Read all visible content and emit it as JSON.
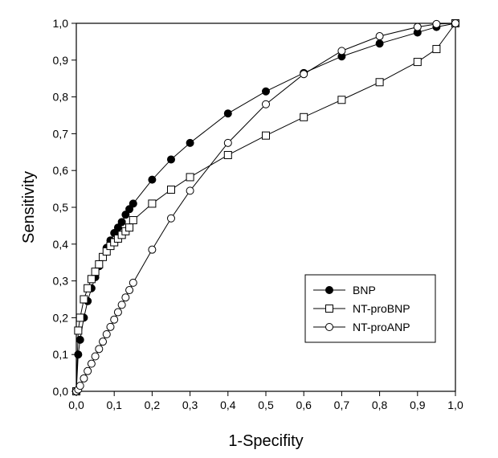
{
  "chart_data": {
    "type": "line",
    "xlabel": "1-Specifity",
    "ylabel": "Sensitivity",
    "xlim": [
      0,
      1
    ],
    "ylim": [
      0,
      1
    ],
    "x_ticks": [
      "0,0",
      "0,1",
      "0,2",
      "0,3",
      "0,4",
      "0,5",
      "0,6",
      "0,7",
      "0,8",
      "0,9",
      "1,0"
    ],
    "y_ticks": [
      "0,0",
      "0,1",
      "0,2",
      "0,3",
      "0,4",
      "0,5",
      "0,6",
      "0,7",
      "0,8",
      "0,9",
      "1,0"
    ],
    "grid": false,
    "legend_position": "bottom-right",
    "series": [
      {
        "name": "BNP",
        "marker": "filled-circle",
        "color": "#000000",
        "x": [
          0,
          0.005,
          0.01,
          0.02,
          0.03,
          0.04,
          0.05,
          0.06,
          0.07,
          0.08,
          0.09,
          0.1,
          0.11,
          0.12,
          0.13,
          0.14,
          0.15,
          0.2,
          0.25,
          0.3,
          0.4,
          0.5,
          0.6,
          0.7,
          0.8,
          0.9,
          0.95,
          1.0
        ],
        "y": [
          0,
          0.1,
          0.14,
          0.2,
          0.245,
          0.28,
          0.31,
          0.34,
          0.365,
          0.39,
          0.41,
          0.43,
          0.445,
          0.46,
          0.48,
          0.495,
          0.51,
          0.575,
          0.63,
          0.675,
          0.755,
          0.815,
          0.865,
          0.91,
          0.945,
          0.975,
          0.99,
          1.0
        ]
      },
      {
        "name": "NT-proBNP",
        "marker": "open-square",
        "color": "#000000",
        "x": [
          0,
          0.005,
          0.01,
          0.02,
          0.03,
          0.04,
          0.05,
          0.06,
          0.07,
          0.08,
          0.09,
          0.1,
          0.11,
          0.12,
          0.13,
          0.14,
          0.15,
          0.2,
          0.25,
          0.3,
          0.4,
          0.5,
          0.6,
          0.7,
          0.8,
          0.9,
          0.95,
          1.0
        ],
        "y": [
          0,
          0.165,
          0.2,
          0.25,
          0.28,
          0.305,
          0.325,
          0.345,
          0.365,
          0.38,
          0.395,
          0.405,
          0.415,
          0.425,
          0.435,
          0.445,
          0.465,
          0.51,
          0.548,
          0.582,
          0.642,
          0.695,
          0.745,
          0.792,
          0.84,
          0.895,
          0.93,
          1.0
        ]
      },
      {
        "name": "NT-proANP",
        "marker": "open-circle",
        "color": "#000000",
        "x": [
          0,
          0.005,
          0.01,
          0.02,
          0.03,
          0.04,
          0.05,
          0.06,
          0.07,
          0.08,
          0.09,
          0.1,
          0.11,
          0.12,
          0.13,
          0.14,
          0.15,
          0.2,
          0.25,
          0.3,
          0.4,
          0.5,
          0.6,
          0.7,
          0.8,
          0.9,
          0.95,
          1.0
        ],
        "y": [
          0,
          0.005,
          0.015,
          0.035,
          0.055,
          0.075,
          0.095,
          0.115,
          0.135,
          0.155,
          0.175,
          0.195,
          0.215,
          0.235,
          0.255,
          0.275,
          0.295,
          0.385,
          0.47,
          0.545,
          0.675,
          0.78,
          0.862,
          0.925,
          0.965,
          0.99,
          0.998,
          1.0
        ]
      }
    ]
  }
}
